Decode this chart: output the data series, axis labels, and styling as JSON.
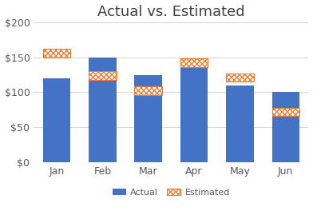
{
  "categories": [
    "Jan",
    "Feb",
    "Mar",
    "Apr",
    "May",
    "Jun"
  ],
  "actual": [
    120,
    150,
    125,
    140,
    110,
    100
  ],
  "estimated": [
    162,
    130,
    108,
    148,
    127,
    78
  ],
  "bar_color_actual": "#4472c4",
  "bar_color_estimated": "#ed7d31",
  "title": "Actual vs. Estimated",
  "title_fontsize": 13,
  "ylim": [
    0,
    200
  ],
  "yticks": [
    0,
    50,
    100,
    150,
    200
  ],
  "background_color": "#ffffff",
  "grid_color": "#d9d9d9",
  "legend_labels": [
    "Actual",
    "Estimated"
  ],
  "bar_width": 0.6,
  "estimated_bar_height": 12
}
